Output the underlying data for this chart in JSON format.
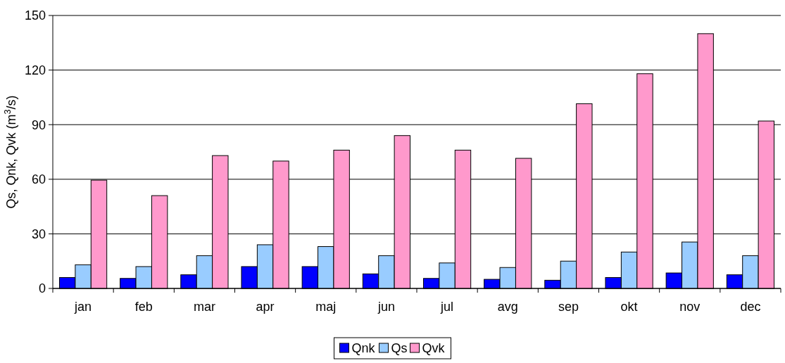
{
  "chart_data": {
    "type": "bar",
    "ylabel": "Qs, Qnk, Qvk (m$^{3}$/s)",
    "categories": [
      "jan",
      "feb",
      "mar",
      "apr",
      "maj",
      "jun",
      "jul",
      "avg",
      "sep",
      "okt",
      "nov",
      "dec"
    ],
    "series": [
      {
        "name": "Qnk",
        "color": "#0000ff",
        "values": [
          6,
          5.5,
          7.5,
          12,
          12,
          8,
          5.5,
          5,
          4.5,
          6,
          8.5,
          7.5
        ]
      },
      {
        "name": "Qs",
        "color": "#99ccff",
        "values": [
          13,
          12,
          18,
          24,
          23,
          18,
          14,
          11.5,
          15,
          20,
          25.5,
          18
        ]
      },
      {
        "name": "Qvk",
        "color": "#ff99cc",
        "values": [
          59.5,
          51,
          73,
          70,
          76,
          84,
          76,
          71.5,
          101.5,
          118,
          140,
          92
        ]
      }
    ],
    "ylim": [
      0,
      150
    ],
    "yticks": [
      0,
      30,
      60,
      90,
      120,
      150
    ],
    "grid": "y",
    "legend": "bottom"
  }
}
